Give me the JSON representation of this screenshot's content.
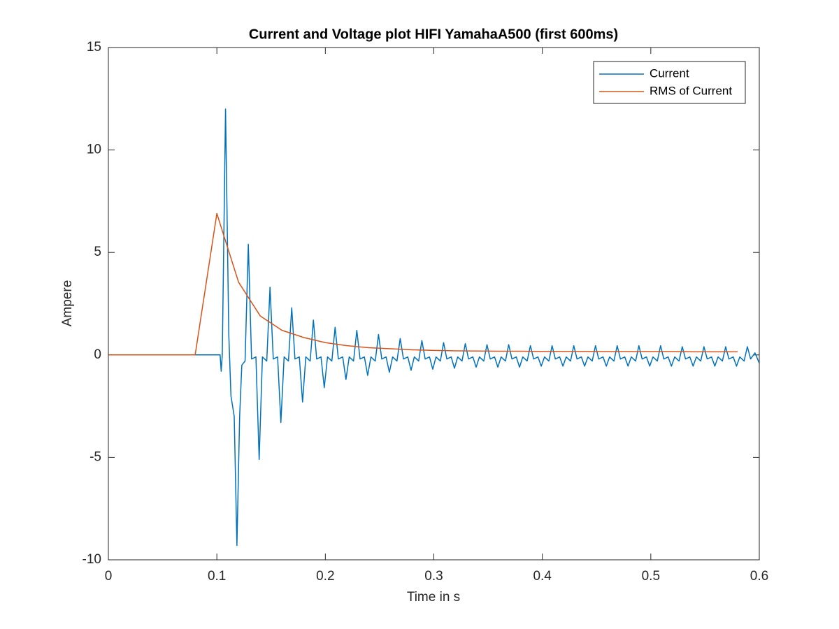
{
  "chart_data": {
    "type": "line",
    "title": "Current and Voltage plot HIFI YamahaA500 (first 600ms)",
    "x_label": "Time in s",
    "y_label": "Ampere",
    "xlim": [
      0,
      0.6
    ],
    "ylim": [
      -10,
      15
    ],
    "xticks": [
      0,
      0.1,
      0.2,
      0.3,
      0.4,
      0.5,
      0.6
    ],
    "yticks": [
      -10,
      -5,
      0,
      5,
      10,
      15
    ],
    "legend": "upper right",
    "series": [
      {
        "name": "Current",
        "color": "#0072bd",
        "x": [
          0,
          0.103,
          0.104,
          0.105,
          0.108,
          0.111,
          0.113,
          0.116,
          0.1185,
          0.121,
          0.123,
          0.126,
          0.129,
          0.132,
          0.136,
          0.139,
          0.142,
          0.146,
          0.149,
          0.152,
          0.156,
          0.159,
          0.162,
          0.166,
          0.169,
          0.172,
          0.176,
          0.179,
          0.182,
          0.186,
          0.189,
          0.192,
          0.196,
          0.199,
          0.202,
          0.206,
          0.209,
          0.212,
          0.216,
          0.219,
          0.222,
          0.226,
          0.229,
          0.232,
          0.236,
          0.239,
          0.242,
          0.246,
          0.249,
          0.252,
          0.256,
          0.259,
          0.262,
          0.266,
          0.269,
          0.272,
          0.276,
          0.279,
          0.282,
          0.286,
          0.289,
          0.292,
          0.296,
          0.299,
          0.302,
          0.306,
          0.309,
          0.312,
          0.316,
          0.319,
          0.322,
          0.326,
          0.329,
          0.332,
          0.336,
          0.339,
          0.342,
          0.346,
          0.349,
          0.352,
          0.356,
          0.359,
          0.362,
          0.366,
          0.369,
          0.372,
          0.376,
          0.379,
          0.382,
          0.386,
          0.389,
          0.392,
          0.396,
          0.399,
          0.402,
          0.406,
          0.409,
          0.412,
          0.416,
          0.419,
          0.422,
          0.426,
          0.429,
          0.432,
          0.436,
          0.439,
          0.442,
          0.446,
          0.449,
          0.452,
          0.456,
          0.459,
          0.462,
          0.466,
          0.469,
          0.472,
          0.476,
          0.479,
          0.482,
          0.486,
          0.489,
          0.492,
          0.496,
          0.499,
          0.502,
          0.506,
          0.509,
          0.512,
          0.516,
          0.519,
          0.522,
          0.526,
          0.529,
          0.532,
          0.536,
          0.539,
          0.542,
          0.546,
          0.549,
          0.552,
          0.556,
          0.559,
          0.562,
          0.566,
          0.569,
          0.572,
          0.576,
          0.579,
          0.582,
          0.586,
          0.589,
          0.592,
          0.596,
          0.6
        ],
        "values": [
          0,
          0,
          -0.8,
          0,
          12,
          1,
          -2,
          -3,
          -9.3,
          -3,
          -0.5,
          -0.3,
          5.4,
          -0.2,
          -0.1,
          -5.1,
          -0.1,
          -0.3,
          3.3,
          -0.2,
          -0.1,
          -3.3,
          -0.1,
          -0.3,
          2.3,
          -0.2,
          -0.1,
          -2.3,
          -0.1,
          -0.3,
          1.7,
          -0.2,
          -0.1,
          -1.6,
          -0.1,
          -0.3,
          1.35,
          -0.2,
          -0.1,
          -1.2,
          -0.1,
          -0.3,
          1.2,
          -0.2,
          -0.1,
          -1.0,
          -0.1,
          -0.3,
          1.0,
          -0.2,
          -0.1,
          -0.85,
          -0.1,
          -0.3,
          0.8,
          -0.2,
          -0.1,
          -0.75,
          -0.1,
          -0.3,
          0.7,
          -0.2,
          -0.1,
          -0.7,
          -0.1,
          -0.3,
          0.6,
          -0.2,
          -0.1,
          -0.65,
          -0.1,
          -0.3,
          0.55,
          -0.2,
          -0.1,
          -0.6,
          -0.1,
          -0.3,
          0.5,
          -0.2,
          -0.1,
          -0.6,
          -0.1,
          -0.3,
          0.5,
          -0.2,
          -0.1,
          -0.6,
          -0.1,
          -0.3,
          0.45,
          -0.2,
          -0.1,
          -0.55,
          -0.1,
          -0.3,
          0.45,
          -0.2,
          -0.1,
          -0.55,
          -0.1,
          -0.3,
          0.45,
          -0.2,
          -0.1,
          -0.55,
          -0.1,
          -0.3,
          0.45,
          -0.2,
          -0.1,
          -0.55,
          -0.1,
          -0.3,
          0.45,
          -0.2,
          -0.1,
          -0.55,
          -0.1,
          -0.3,
          0.45,
          -0.2,
          -0.1,
          -0.55,
          -0.1,
          -0.3,
          0.45,
          -0.2,
          -0.1,
          -0.55,
          -0.1,
          -0.3,
          0.4,
          -0.2,
          -0.1,
          -0.55,
          -0.1,
          -0.3,
          0.4,
          -0.2,
          -0.1,
          -0.55,
          -0.1,
          -0.3,
          0.4,
          -0.2,
          -0.1,
          -0.55,
          -0.1,
          -0.3,
          0.4,
          -0.2,
          0.1,
          -0.4
        ]
      },
      {
        "name": "RMS of Current",
        "color": "#d95319",
        "x": [
          0,
          0.08,
          0.1,
          0.12,
          0.14,
          0.16,
          0.18,
          0.2,
          0.22,
          0.24,
          0.26,
          0.28,
          0.3,
          0.32,
          0.34,
          0.36,
          0.38,
          0.4,
          0.42,
          0.44,
          0.46,
          0.48,
          0.5,
          0.52,
          0.54,
          0.56,
          0.58
        ],
        "values": [
          0,
          0,
          6.9,
          3.55,
          1.9,
          1.2,
          0.85,
          0.6,
          0.45,
          0.35,
          0.3,
          0.25,
          0.22,
          0.2,
          0.19,
          0.18,
          0.18,
          0.17,
          0.17,
          0.17,
          0.16,
          0.16,
          0.16,
          0.16,
          0.15,
          0.15,
          0.15
        ]
      }
    ]
  }
}
